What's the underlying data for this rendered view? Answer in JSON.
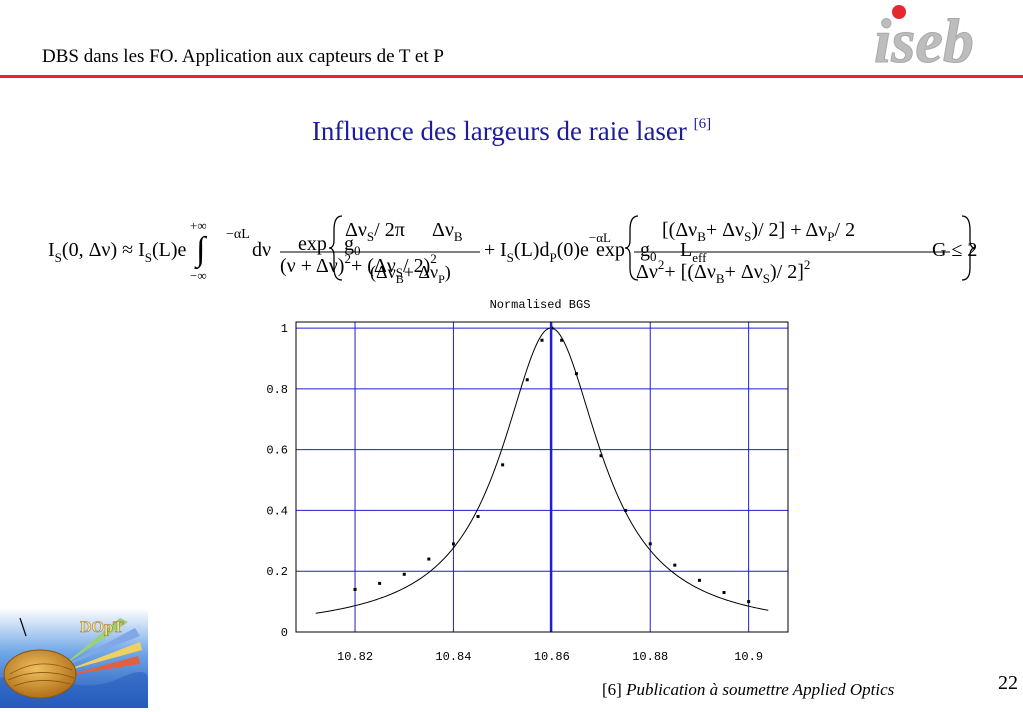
{
  "header": {
    "title": "DBS dans les FO. Application aux capteurs de T et P"
  },
  "logo": {
    "text": "iseb",
    "accent": "#e4292e",
    "color": "#bdbdbd"
  },
  "slide": {
    "title": "Influence des largeurs de raie laser",
    "ref": "[6]"
  },
  "formula": {
    "lhs": "I",
    "lhs_sub": "S",
    "lhs_args": "(0, Δν) ≈ I",
    "lhs_sub2": "S",
    "lhs_args2": "(L)e",
    "exp_term": "−αL",
    "integral_top": "+∞",
    "integral_bottom": "−∞",
    "plus": "+",
    "dnu": "dν",
    "exp_word": "exp",
    "g0": "g",
    "g0_sub": "0",
    "num1": "Δν",
    "num1_sub": "S",
    "num1_tail": "/ 2π",
    "num2": "Δν",
    "num2_sub": "B",
    "den1": "(ν + Δν)",
    "den1_sup": "2",
    "den1_tail": "+ (Δν",
    "den1_sub": "S",
    "den1_tail2": "/ 2)",
    "den1_sup2": "2",
    "mid1": "(Δν",
    "mid1_sub": "B",
    "mid1_tail": "+ Δν",
    "mid1_sub2": "P",
    "mid1_tail2": ")",
    "mid2": "I",
    "mid2_sub": "S",
    "mid2_tail": "(L)d",
    "mid3_sub": "P",
    "mid3_tail": "(0)e",
    "mid3_sup": "−αL",
    "leff": "L",
    "leff_sub": "eff",
    "rnum": "[(Δν",
    "rnum_sub": "B",
    "rnum_tail": "+ Δν",
    "rnum_sub2": "S",
    "rnum_tail2": ")/ 2] + Δν",
    "rnum_sub3": "P",
    "rnum_tail3": "/ 2",
    "rden1": "Δν",
    "rden1_sup": "2",
    "rden2": "+ [(Δν",
    "rden2_sub": "B",
    "rden2_tail": "+ Δν",
    "rden2_sub2": "S",
    "rden2_tail2": ")/ 2]",
    "rden2_sup": "2",
    "tail": "G ≤ 2"
  },
  "chart_data": {
    "type": "scatter",
    "title": "Normalised BGS",
    "xlabel": "",
    "ylabel": "",
    "xlim": [
      10.808,
      10.908
    ],
    "ylim": [
      0,
      1.02
    ],
    "xticks": [
      "10.82",
      "10.84",
      "10.86",
      "10.88",
      "10.9"
    ],
    "yticks": [
      "0",
      "0.2",
      "0.4",
      "0.6",
      "0.8",
      "1"
    ],
    "grid": true,
    "grid_color": "#1f1fd0",
    "center_line_x": 10.8598,
    "fit": {
      "center": 10.8598,
      "fwhm": 0.0245,
      "name": ""
    },
    "measured": {
      "x": [
        10.82,
        10.825,
        10.83,
        10.835,
        10.84,
        10.845,
        10.85,
        10.855,
        10.858,
        10.86,
        10.862,
        10.865,
        10.87,
        10.875,
        10.88,
        10.885,
        10.89,
        10.895,
        10.9
      ],
      "y": [
        0.14,
        0.16,
        0.19,
        0.24,
        0.29,
        0.38,
        0.55,
        0.83,
        0.96,
        1.0,
        0.96,
        0.85,
        0.58,
        0.4,
        0.29,
        0.22,
        0.17,
        0.13,
        0.1
      ]
    }
  },
  "footer": {
    "ref_num": "[6]",
    "ref_text": "Publication à soumettre Applied Optics",
    "page": "22"
  }
}
